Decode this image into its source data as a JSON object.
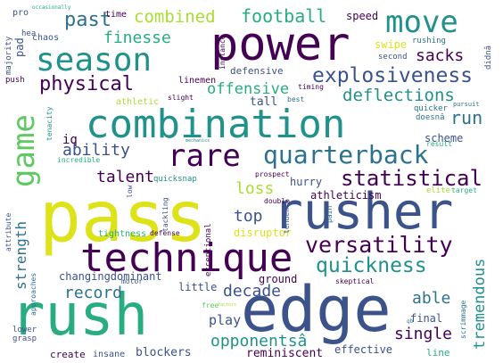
{
  "palette": {
    "c1": "#440154",
    "c2": "#3b528b",
    "c3": "#2c728e",
    "c4": "#21918c",
    "c5": "#27ad81",
    "c6": "#5ec962",
    "c7": "#aadc32",
    "c8": "#dde318",
    "c9": "#fde725"
  },
  "words": [
    {
      "text": "pass",
      "color": "c8"
    },
    {
      "text": "rush",
      "color": "c5"
    },
    {
      "text": "edge",
      "color": "c2"
    },
    {
      "text": "rusher",
      "color": "c2"
    },
    {
      "text": "combination",
      "color": "c4"
    },
    {
      "text": "power",
      "color": "c1"
    },
    {
      "text": "technique",
      "color": "c1"
    },
    {
      "text": "quarterback",
      "color": "c3"
    },
    {
      "text": "rare",
      "color": "c1"
    },
    {
      "text": "move",
      "color": "c4"
    },
    {
      "text": "game",
      "color": "c6"
    },
    {
      "text": "season",
      "color": "c4"
    },
    {
      "text": "explosiveness",
      "color": "c2"
    },
    {
      "text": "versatility",
      "color": "c1"
    },
    {
      "text": "statistical",
      "color": "c1"
    },
    {
      "text": "quickness",
      "color": "c4"
    },
    {
      "text": "physical",
      "color": "c1"
    },
    {
      "text": "combined",
      "color": "c7"
    },
    {
      "text": "football",
      "color": "c5"
    },
    {
      "text": "past",
      "color": "c3"
    },
    {
      "text": "finesse",
      "color": "c5"
    },
    {
      "text": "sacks",
      "color": "c1"
    },
    {
      "text": "deflections",
      "color": "c4"
    },
    {
      "text": "offensive",
      "color": "c5"
    },
    {
      "text": "run",
      "color": "c3"
    },
    {
      "text": "ability",
      "color": "c2"
    },
    {
      "text": "talent",
      "color": "c1"
    },
    {
      "text": "loss",
      "color": "c7"
    },
    {
      "text": "top",
      "color": "c2"
    },
    {
      "text": "strength",
      "color": "c3"
    },
    {
      "text": "decade",
      "color": "c2"
    },
    {
      "text": "record",
      "color": "c3"
    },
    {
      "text": "opponentsâ",
      "color": "c4"
    },
    {
      "text": "able",
      "color": "c3"
    },
    {
      "text": "single",
      "color": "c1"
    },
    {
      "text": "tremendous",
      "color": "c4"
    },
    {
      "text": "play",
      "color": "c2"
    },
    {
      "text": "changingdominant",
      "color": "c2"
    },
    {
      "text": "little",
      "color": "c2"
    },
    {
      "text": "ground",
      "color": "c1"
    },
    {
      "text": "scheme",
      "color": "c2"
    },
    {
      "text": "athleticism",
      "color": "c1"
    },
    {
      "text": "hurry",
      "color": "c2"
    },
    {
      "text": "iq",
      "color": "c1"
    },
    {
      "text": "disruptor",
      "color": "c8"
    },
    {
      "text": "blockers",
      "color": "c2"
    },
    {
      "text": "effective",
      "color": "c2"
    },
    {
      "text": "final",
      "color": "c2"
    },
    {
      "text": "reminiscent",
      "color": "c1"
    },
    {
      "text": "insane",
      "color": "c2"
    },
    {
      "text": "create",
      "color": "c1"
    },
    {
      "text": "line",
      "color": "c5"
    },
    {
      "text": "tall",
      "color": "c2"
    },
    {
      "text": "athletic",
      "color": "c7"
    },
    {
      "text": "defensive",
      "color": "c2"
    },
    {
      "text": "linemen",
      "color": "c1"
    },
    {
      "text": "swipe",
      "color": "c8"
    },
    {
      "text": "speed",
      "color": "c1"
    },
    {
      "text": "time",
      "color": "c1"
    },
    {
      "text": "pro",
      "color": "c2"
    },
    {
      "text": "occasionally",
      "color": "c5"
    },
    {
      "text": "chaos",
      "color": "c2"
    },
    {
      "text": "majority",
      "color": "c2"
    },
    {
      "text": "pad",
      "color": "c2"
    },
    {
      "text": "hea",
      "color": "c2"
    },
    {
      "text": "push",
      "color": "c1"
    },
    {
      "text": "instance",
      "color": "c1"
    },
    {
      "text": "second",
      "color": "c2"
    },
    {
      "text": "rushing",
      "color": "c3"
    },
    {
      "text": "didnâ",
      "color": "c2"
    },
    {
      "text": "pursuit",
      "color": "c3"
    },
    {
      "text": "quicker",
      "color": "c3"
    },
    {
      "text": "doesnâ",
      "color": "c3"
    },
    {
      "text": "result",
      "color": "c5"
    },
    {
      "text": "timing",
      "color": "c1"
    },
    {
      "text": "slight",
      "color": "c1"
    },
    {
      "text": "best",
      "color": "c3"
    },
    {
      "text": "mechanics",
      "color": "c4"
    },
    {
      "text": "tenacity",
      "color": "c4"
    },
    {
      "text": "incredible",
      "color": "c5"
    },
    {
      "text": "prospect",
      "color": "c1"
    },
    {
      "text": "quicksnap",
      "color": "c4"
    },
    {
      "text": "elite",
      "color": "c7"
    },
    {
      "text": "target",
      "color": "c5"
    },
    {
      "text": "low",
      "color": "c2"
    },
    {
      "text": "tackling",
      "color": "c2"
    },
    {
      "text": "double",
      "color": "c1"
    },
    {
      "text": "tendency",
      "color": "c2"
    },
    {
      "text": "pain",
      "color": "c3"
    },
    {
      "text": "exceptional",
      "color": "c1"
    },
    {
      "text": "tightness",
      "color": "c5"
    },
    {
      "text": "defense",
      "color": "c1"
    },
    {
      "text": "motor",
      "color": "c2"
    },
    {
      "text": "skeptical",
      "color": "c1"
    },
    {
      "text": "attribute",
      "color": "c2"
    },
    {
      "text": "approaches",
      "color": "c3"
    },
    {
      "text": "lower",
      "color": "c2"
    },
    {
      "text": "grasp",
      "color": "c2"
    },
    {
      "text": "free",
      "color": "c6"
    },
    {
      "text": "factors",
      "color": "c7"
    },
    {
      "text": "scrimmage",
      "color": "c3"
    },
    {
      "text": "qb",
      "color": "c3"
    }
  ]
}
